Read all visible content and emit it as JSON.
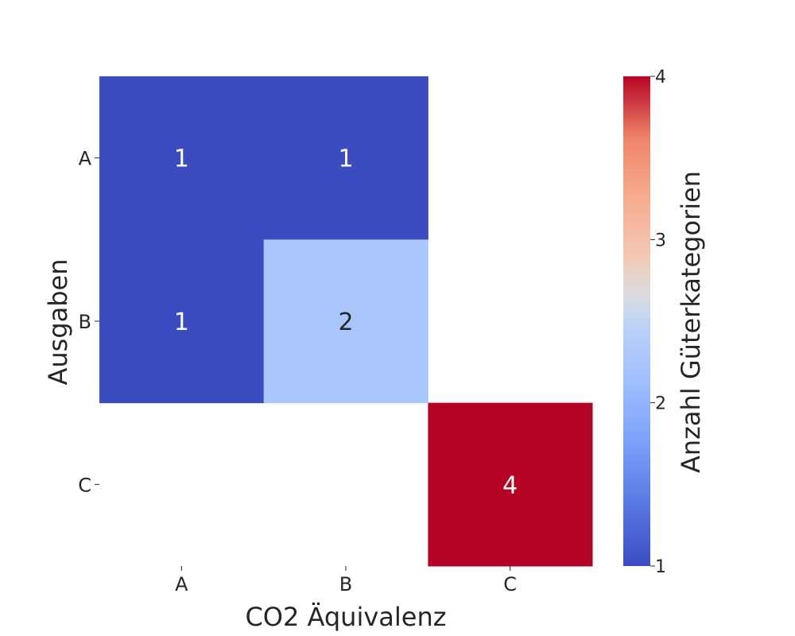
{
  "chart_data": {
    "type": "heatmap",
    "x_categories": [
      "A",
      "B",
      "C"
    ],
    "y_categories": [
      "A",
      "B",
      "C"
    ],
    "values": [
      [
        1,
        1,
        null
      ],
      [
        1,
        2,
        null
      ],
      [
        null,
        null,
        4
      ]
    ],
    "xlabel": "CO2 Äquivalenz",
    "ylabel": "Ausgaben",
    "colorbar": {
      "label": "Anzahl Güterkategorien",
      "min": 1,
      "max": 4,
      "ticks": [
        "1",
        "2",
        "3",
        "4"
      ],
      "colormap": "coolwarm"
    },
    "annotations": true,
    "grid": false
  }
}
